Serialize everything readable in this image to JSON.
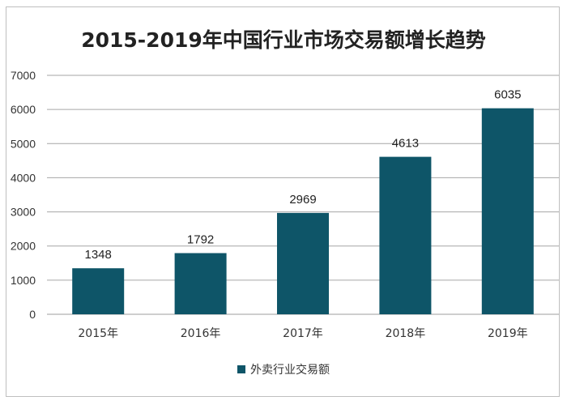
{
  "chart_data": {
    "type": "bar",
    "title": "2015-2019年中国行业市场交易额增长趋势",
    "categories": [
      "2015年",
      "2016年",
      "2017年",
      "2018年",
      "2019年"
    ],
    "series": [
      {
        "name": "外卖行业交易额",
        "values": [
          1348,
          1792,
          2969,
          4613,
          6035
        ],
        "color": "#0e5568"
      }
    ],
    "ylim": [
      0,
      7000
    ],
    "yticks": [
      0,
      1000,
      2000,
      3000,
      4000,
      5000,
      6000,
      7000
    ],
    "grid": true,
    "legend": "bottom",
    "data_labels": true
  }
}
